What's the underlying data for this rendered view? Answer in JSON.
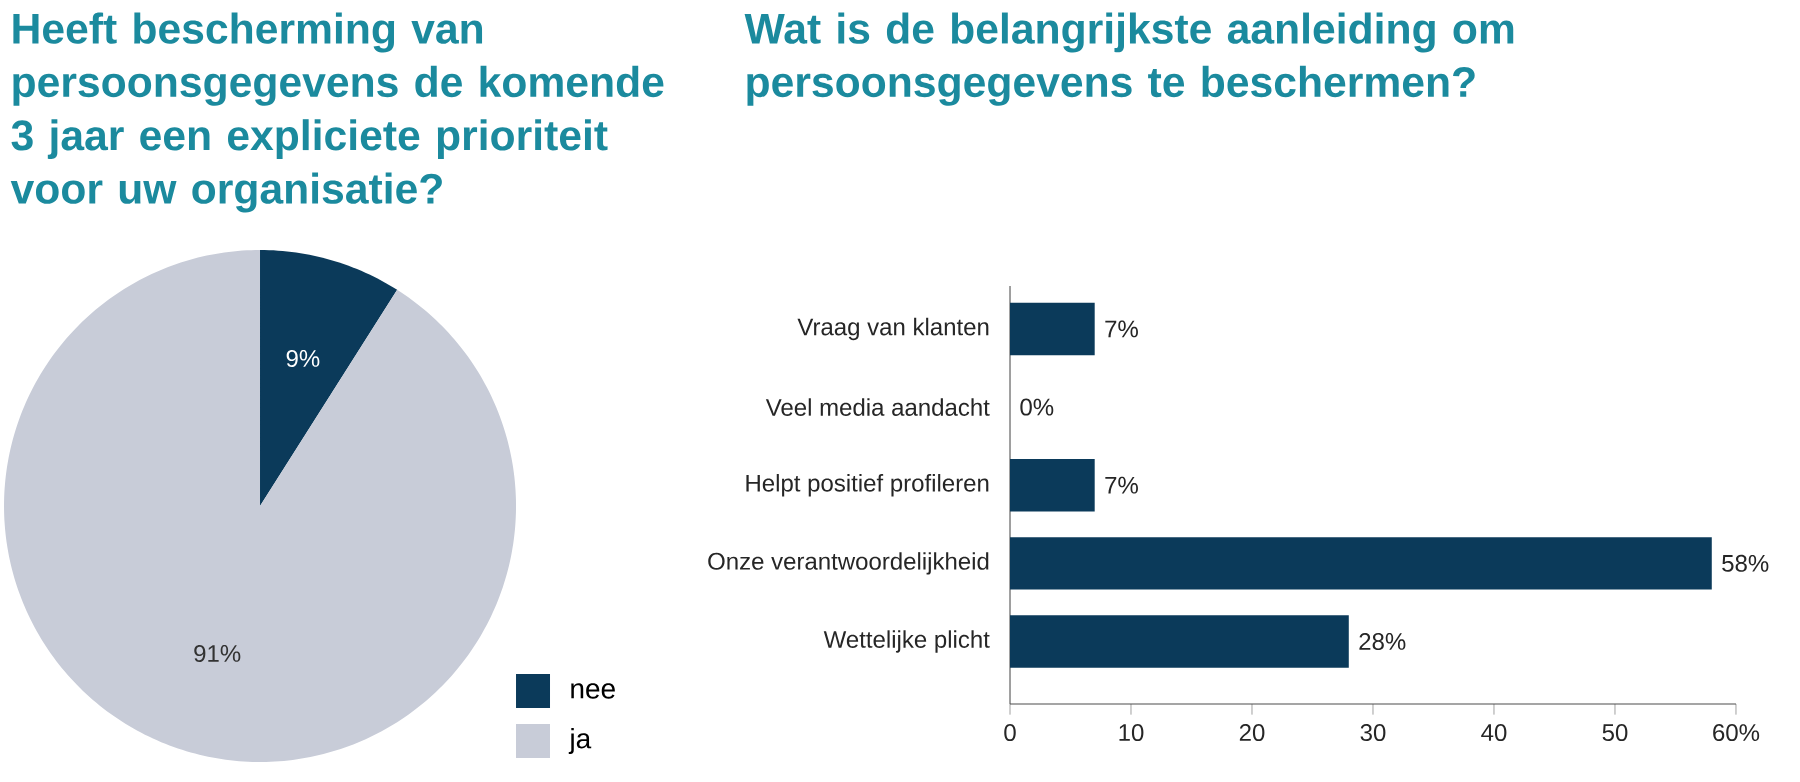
{
  "chart_data": [
    {
      "type": "pie",
      "title": "Heeft bescherming van persoonsgegevens de komende 3 jaar een expliciete prioriteit voor uw organisatie?",
      "categories": [
        "nee",
        "ja"
      ],
      "values": [
        9,
        91
      ],
      "colors": [
        "#0b3a5a",
        "#c8ccd8"
      ],
      "value_labels": [
        "9%",
        "91%"
      ],
      "legend": "bottom right"
    },
    {
      "type": "bar",
      "orientation": "horizontal",
      "title": "Wat is de belangrijkste aanleiding om persoonsgegevens te beschermen?",
      "categories": [
        "Vraag van klanten",
        "Veel media aandacht",
        "Helpt positief profileren",
        "Onze verantwoordelijkheid",
        "Wettelijke plicht"
      ],
      "values": [
        7,
        0,
        7,
        58,
        28
      ],
      "color": "#0b3a5a",
      "value_labels": [
        "7%",
        "0%",
        "7%",
        "58%",
        "28%"
      ],
      "xlim": [
        0,
        60
      ],
      "xticks": [
        0,
        10,
        20,
        30,
        40,
        50,
        {
          "value": 60,
          "label": "60%"
        }
      ],
      "grid": false
    }
  ]
}
